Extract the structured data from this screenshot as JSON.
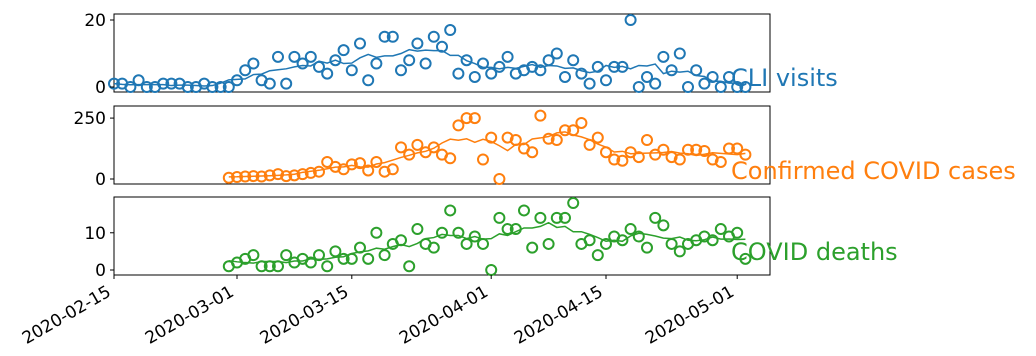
{
  "chart_data": {
    "type": "scatter",
    "x_axis": {
      "type": "date",
      "tick_labels": [
        "2020-02-15",
        "2020-03-01",
        "2020-03-15",
        "2020-04-01",
        "2020-04-15",
        "2020-05-01"
      ],
      "xlim": [
        "2020-02-15",
        "2020-05-05"
      ]
    },
    "grid": false,
    "panels": [
      {
        "label": "CLI visits",
        "color": "#1f77b4",
        "ylim": [
          0,
          20
        ],
        "yticks": [
          0,
          20
        ],
        "markers": "open circles",
        "smoothed_line": true,
        "points": [
          [
            "2020-02-15",
            1
          ],
          [
            "2020-02-16",
            1
          ],
          [
            "2020-02-17",
            0
          ],
          [
            "2020-02-18",
            2
          ],
          [
            "2020-02-19",
            0
          ],
          [
            "2020-02-20",
            0
          ],
          [
            "2020-02-21",
            1
          ],
          [
            "2020-02-22",
            1
          ],
          [
            "2020-02-23",
            1
          ],
          [
            "2020-02-24",
            0
          ],
          [
            "2020-02-25",
            0
          ],
          [
            "2020-02-26",
            1
          ],
          [
            "2020-02-27",
            0
          ],
          [
            "2020-02-28",
            0
          ],
          [
            "2020-02-29",
            0
          ],
          [
            "2020-03-01",
            2
          ],
          [
            "2020-03-02",
            5
          ],
          [
            "2020-03-03",
            7
          ],
          [
            "2020-03-04",
            2
          ],
          [
            "2020-03-05",
            1
          ],
          [
            "2020-03-06",
            9
          ],
          [
            "2020-03-07",
            1
          ],
          [
            "2020-03-08",
            9
          ],
          [
            "2020-03-09",
            7
          ],
          [
            "2020-03-10",
            9
          ],
          [
            "2020-03-11",
            6
          ],
          [
            "2020-03-12",
            4
          ],
          [
            "2020-03-13",
            8
          ],
          [
            "2020-03-14",
            11
          ],
          [
            "2020-03-15",
            5
          ],
          [
            "2020-03-16",
            13
          ],
          [
            "2020-03-17",
            2
          ],
          [
            "2020-03-18",
            7
          ],
          [
            "2020-03-19",
            15
          ],
          [
            "2020-03-20",
            15
          ],
          [
            "2020-03-21",
            5
          ],
          [
            "2020-03-22",
            8
          ],
          [
            "2020-03-23",
            13
          ],
          [
            "2020-03-24",
            7
          ],
          [
            "2020-03-25",
            15
          ],
          [
            "2020-03-26",
            12
          ],
          [
            "2020-03-27",
            17
          ],
          [
            "2020-03-28",
            4
          ],
          [
            "2020-03-29",
            8
          ],
          [
            "2020-03-30",
            3
          ],
          [
            "2020-03-31",
            7
          ],
          [
            "2020-04-01",
            4
          ],
          [
            "2020-04-02",
            6
          ],
          [
            "2020-04-03",
            9
          ],
          [
            "2020-04-04",
            4
          ],
          [
            "2020-04-05",
            5
          ],
          [
            "2020-04-06",
            6
          ],
          [
            "2020-04-07",
            5
          ],
          [
            "2020-04-08",
            8
          ],
          [
            "2020-04-09",
            10
          ],
          [
            "2020-04-10",
            3
          ],
          [
            "2020-04-11",
            8
          ],
          [
            "2020-04-12",
            4
          ],
          [
            "2020-04-13",
            1
          ],
          [
            "2020-04-14",
            6
          ],
          [
            "2020-04-15",
            2
          ],
          [
            "2020-04-16",
            6
          ],
          [
            "2020-04-17",
            6
          ],
          [
            "2020-04-18",
            20
          ],
          [
            "2020-04-19",
            0
          ],
          [
            "2020-04-20",
            3
          ],
          [
            "2020-04-21",
            1
          ],
          [
            "2020-04-22",
            9
          ],
          [
            "2020-04-23",
            5
          ],
          [
            "2020-04-24",
            10
          ],
          [
            "2020-04-25",
            0
          ],
          [
            "2020-04-26",
            5
          ],
          [
            "2020-04-27",
            1
          ],
          [
            "2020-04-28",
            3
          ],
          [
            "2020-04-29",
            0
          ],
          [
            "2020-04-30",
            3
          ],
          [
            "2020-05-01",
            0
          ],
          [
            "2020-05-02",
            0
          ]
        ]
      },
      {
        "label": "Confirmed COVID cases",
        "color": "#ff7f0e",
        "ylim": [
          0,
          275
        ],
        "yticks": [
          0,
          250
        ],
        "markers": "open circles",
        "smoothed_line": true,
        "points": [
          [
            "2020-02-29",
            5
          ],
          [
            "2020-03-01",
            8
          ],
          [
            "2020-03-02",
            10
          ],
          [
            "2020-03-03",
            12
          ],
          [
            "2020-03-04",
            10
          ],
          [
            "2020-03-05",
            15
          ],
          [
            "2020-03-06",
            20
          ],
          [
            "2020-03-07",
            12
          ],
          [
            "2020-03-08",
            15
          ],
          [
            "2020-03-09",
            20
          ],
          [
            "2020-03-10",
            25
          ],
          [
            "2020-03-11",
            30
          ],
          [
            "2020-03-12",
            70
          ],
          [
            "2020-03-13",
            50
          ],
          [
            "2020-03-14",
            40
          ],
          [
            "2020-03-15",
            60
          ],
          [
            "2020-03-16",
            65
          ],
          [
            "2020-03-17",
            35
          ],
          [
            "2020-03-18",
            70
          ],
          [
            "2020-03-19",
            30
          ],
          [
            "2020-03-20",
            40
          ],
          [
            "2020-03-21",
            130
          ],
          [
            "2020-03-22",
            100
          ],
          [
            "2020-03-23",
            140
          ],
          [
            "2020-03-24",
            110
          ],
          [
            "2020-03-25",
            130
          ],
          [
            "2020-03-26",
            100
          ],
          [
            "2020-03-27",
            85
          ],
          [
            "2020-03-28",
            220
          ],
          [
            "2020-03-29",
            250
          ],
          [
            "2020-03-30",
            250
          ],
          [
            "2020-03-31",
            80
          ],
          [
            "2020-04-01",
            170
          ],
          [
            "2020-04-02",
            0
          ],
          [
            "2020-04-03",
            170
          ],
          [
            "2020-04-04",
            160
          ],
          [
            "2020-04-05",
            125
          ],
          [
            "2020-04-06",
            110
          ],
          [
            "2020-04-07",
            260
          ],
          [
            "2020-04-08",
            165
          ],
          [
            "2020-04-09",
            160
          ],
          [
            "2020-04-10",
            200
          ],
          [
            "2020-04-11",
            200
          ],
          [
            "2020-04-12",
            230
          ],
          [
            "2020-04-13",
            140
          ],
          [
            "2020-04-14",
            170
          ],
          [
            "2020-04-15",
            110
          ],
          [
            "2020-04-16",
            80
          ],
          [
            "2020-04-17",
            75
          ],
          [
            "2020-04-18",
            110
          ],
          [
            "2020-04-19",
            90
          ],
          [
            "2020-04-20",
            160
          ],
          [
            "2020-04-21",
            100
          ],
          [
            "2020-04-22",
            120
          ],
          [
            "2020-04-23",
            90
          ],
          [
            "2020-04-24",
            80
          ],
          [
            "2020-04-25",
            120
          ],
          [
            "2020-04-26",
            120
          ],
          [
            "2020-04-27",
            115
          ],
          [
            "2020-04-28",
            80
          ],
          [
            "2020-04-29",
            70
          ],
          [
            "2020-04-30",
            125
          ],
          [
            "2020-05-01",
            125
          ],
          [
            "2020-05-02",
            100
          ]
        ]
      },
      {
        "label": "COVID deaths",
        "color": "#2ca02c",
        "ylim": [
          0,
          18
        ],
        "yticks": [
          0,
          10
        ],
        "markers": "open circles",
        "smoothed_line": true,
        "points": [
          [
            "2020-02-29",
            1
          ],
          [
            "2020-03-01",
            2
          ],
          [
            "2020-03-02",
            3
          ],
          [
            "2020-03-03",
            4
          ],
          [
            "2020-03-04",
            1
          ],
          [
            "2020-03-05",
            1
          ],
          [
            "2020-03-06",
            1
          ],
          [
            "2020-03-07",
            4
          ],
          [
            "2020-03-08",
            2
          ],
          [
            "2020-03-09",
            3
          ],
          [
            "2020-03-10",
            2
          ],
          [
            "2020-03-11",
            4
          ],
          [
            "2020-03-12",
            1
          ],
          [
            "2020-03-13",
            5
          ],
          [
            "2020-03-14",
            3
          ],
          [
            "2020-03-15",
            3
          ],
          [
            "2020-03-16",
            6
          ],
          [
            "2020-03-17",
            3
          ],
          [
            "2020-03-18",
            10
          ],
          [
            "2020-03-19",
            4
          ],
          [
            "2020-03-20",
            7
          ],
          [
            "2020-03-21",
            8
          ],
          [
            "2020-03-22",
            1
          ],
          [
            "2020-03-23",
            11
          ],
          [
            "2020-03-24",
            7
          ],
          [
            "2020-03-25",
            6
          ],
          [
            "2020-03-26",
            10
          ],
          [
            "2020-03-27",
            16
          ],
          [
            "2020-03-28",
            10
          ],
          [
            "2020-03-29",
            7
          ],
          [
            "2020-03-30",
            9
          ],
          [
            "2020-03-31",
            7
          ],
          [
            "2020-04-01",
            0
          ],
          [
            "2020-04-02",
            14
          ],
          [
            "2020-04-03",
            11
          ],
          [
            "2020-04-04",
            11
          ],
          [
            "2020-04-05",
            16
          ],
          [
            "2020-04-06",
            6
          ],
          [
            "2020-04-07",
            14
          ],
          [
            "2020-04-08",
            7
          ],
          [
            "2020-04-09",
            14
          ],
          [
            "2020-04-10",
            14
          ],
          [
            "2020-04-11",
            18
          ],
          [
            "2020-04-12",
            7
          ],
          [
            "2020-04-13",
            8
          ],
          [
            "2020-04-14",
            4
          ],
          [
            "2020-04-15",
            7
          ],
          [
            "2020-04-16",
            9
          ],
          [
            "2020-04-17",
            8
          ],
          [
            "2020-04-18",
            11
          ],
          [
            "2020-04-19",
            9
          ],
          [
            "2020-04-20",
            6
          ],
          [
            "2020-04-21",
            14
          ],
          [
            "2020-04-22",
            12
          ],
          [
            "2020-04-23",
            7
          ],
          [
            "2020-04-24",
            5
          ],
          [
            "2020-04-25",
            7
          ],
          [
            "2020-04-26",
            8
          ],
          [
            "2020-04-27",
            9
          ],
          [
            "2020-04-28",
            8
          ],
          [
            "2020-04-29",
            11
          ],
          [
            "2020-04-30",
            9
          ],
          [
            "2020-05-01",
            10
          ],
          [
            "2020-05-02",
            3
          ]
        ]
      }
    ]
  }
}
